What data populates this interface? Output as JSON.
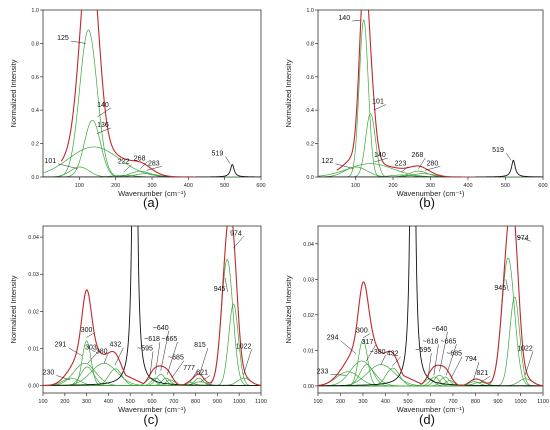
{
  "chart_data": [
    {
      "id": "a",
      "type": "line",
      "label": "(a)",
      "xlabel": "Wavenumber (cm⁻¹)",
      "ylabel": "Normalized Intensity",
      "xlim": [
        0,
        600
      ],
      "ylim": [
        0.0,
        1.0
      ],
      "xticks": [
        "100",
        "200",
        "300",
        "400",
        "500",
        "600"
      ],
      "yticks": [
        "0.0",
        "0.2",
        "0.4",
        "0.6",
        "0.8",
        "1.0"
      ],
      "annotations": [
        "101",
        "125",
        "140",
        "136",
        "222",
        "268",
        "283",
        "519"
      ],
      "fits": [
        {
          "center": 101,
          "height": 0.06,
          "width": 26
        },
        {
          "center": 125,
          "height": 0.88,
          "width": 24
        },
        {
          "center": 136,
          "height": 0.34,
          "width": 22
        },
        {
          "center": 140,
          "height": 0.18,
          "width": 70
        },
        {
          "center": 222,
          "height": 0.01,
          "width": 30
        },
        {
          "center": 268,
          "height": 0.035,
          "width": 26
        },
        {
          "center": 283,
          "height": 0.02,
          "width": 30
        }
      ],
      "silicon": {
        "center": 521,
        "height": 0.075,
        "width": 6
      }
    },
    {
      "id": "b",
      "type": "line",
      "label": "(b)",
      "xlabel": "Wavenumber (cm⁻¹)",
      "ylabel": "Normalized Intensity",
      "xlim": [
        0,
        600
      ],
      "ylim": [
        0.0,
        1.0
      ],
      "xticks": [
        "100",
        "200",
        "300",
        "400",
        "500",
        "600"
      ],
      "yticks": [
        "0.0",
        "0.2",
        "0.4",
        "0.6",
        "0.8",
        "1.0"
      ],
      "annotations": [
        "122",
        "140",
        "101",
        "140",
        "223",
        "268",
        "280",
        "519"
      ],
      "fits": [
        {
          "center": 101,
          "height": 0.06,
          "width": 30
        },
        {
          "center": 122,
          "height": 0.94,
          "width": 12
        },
        {
          "center": 140,
          "height": 0.38,
          "width": 13
        },
        {
          "center": 140,
          "height": 0.08,
          "width": 60
        },
        {
          "center": 223,
          "height": 0.012,
          "width": 30
        },
        {
          "center": 268,
          "height": 0.035,
          "width": 24
        },
        {
          "center": 280,
          "height": 0.02,
          "width": 30
        }
      ],
      "silicon": {
        "center": 521,
        "height": 0.1,
        "width": 6
      }
    },
    {
      "id": "c",
      "type": "line",
      "label": "(c)",
      "xlabel": "Wavenumber (cm⁻¹)",
      "ylabel": "Normalized Intensity",
      "xlim": [
        100,
        1100
      ],
      "ylim": [
        -0.002,
        0.043
      ],
      "xticks": [
        "100",
        "200",
        "300",
        "400",
        "500",
        "600",
        "700",
        "800",
        "900",
        "1000",
        "1100"
      ],
      "yticks": [
        "0.00",
        "0.01",
        "0.02",
        "0.03",
        "0.04"
      ],
      "annotations": [
        "230",
        "291",
        "300",
        "303",
        "~380",
        "432",
        "~595",
        "~618",
        "~640",
        "~665",
        "~685",
        "777",
        "815",
        "821",
        "945",
        "974",
        "1022"
      ],
      "fits": [
        {
          "center": 230,
          "height": 0.002,
          "width": 40
        },
        {
          "center": 291,
          "height": 0.006,
          "width": 50
        },
        {
          "center": 300,
          "height": 0.012,
          "width": 20
        },
        {
          "center": 303,
          "height": 0.005,
          "width": 30
        },
        {
          "center": 380,
          "height": 0.006,
          "width": 60
        },
        {
          "center": 432,
          "height": 0.0045,
          "width": 30
        },
        {
          "center": 595,
          "height": 0.002,
          "width": 20
        },
        {
          "center": 618,
          "height": 0.002,
          "width": 20
        },
        {
          "center": 640,
          "height": 0.003,
          "width": 22
        },
        {
          "center": 665,
          "height": 0.002,
          "width": 20
        },
        {
          "center": 685,
          "height": 0.0015,
          "width": 20
        },
        {
          "center": 777,
          "height": 0.0008,
          "width": 20
        },
        {
          "center": 815,
          "height": 0.002,
          "width": 20
        },
        {
          "center": 821,
          "height": 0.001,
          "width": 30
        },
        {
          "center": 945,
          "height": 0.034,
          "width": 26
        },
        {
          "center": 974,
          "height": 0.022,
          "width": 22
        },
        {
          "center": 1022,
          "height": 0.002,
          "width": 30
        }
      ],
      "silicon": {
        "center": 521,
        "height": 0.3,
        "width": 6
      }
    },
    {
      "id": "d",
      "type": "line",
      "label": "(d)",
      "xlabel": "Wavenumber (cm⁻¹)",
      "ylabel": "Normalized Intensity",
      "xlim": [
        100,
        1100
      ],
      "ylim": [
        -0.002,
        0.045
      ],
      "xticks": [
        "100",
        "200",
        "300",
        "400",
        "500",
        "600",
        "700",
        "800",
        "900",
        "1000",
        "1100"
      ],
      "yticks": [
        "0.00",
        "0.01",
        "0.02",
        "0.03",
        "0.04"
      ],
      "annotations": [
        "233",
        "294",
        "300",
        "317",
        "~380",
        "432",
        "~595",
        "~618",
        "~640",
        "~665",
        "~685",
        "794",
        "821",
        "945",
        "974",
        "1022"
      ],
      "fits": [
        {
          "center": 233,
          "height": 0.004,
          "width": 50
        },
        {
          "center": 294,
          "height": 0.007,
          "width": 50
        },
        {
          "center": 300,
          "height": 0.013,
          "width": 20
        },
        {
          "center": 317,
          "height": 0.006,
          "width": 30
        },
        {
          "center": 380,
          "height": 0.006,
          "width": 60
        },
        {
          "center": 432,
          "height": 0.005,
          "width": 30
        },
        {
          "center": 595,
          "height": 0.002,
          "width": 20
        },
        {
          "center": 618,
          "height": 0.0025,
          "width": 20
        },
        {
          "center": 640,
          "height": 0.003,
          "width": 22
        },
        {
          "center": 665,
          "height": 0.0025,
          "width": 20
        },
        {
          "center": 685,
          "height": 0.0015,
          "width": 20
        },
        {
          "center": 794,
          "height": 0.0012,
          "width": 24
        },
        {
          "center": 821,
          "height": 0.001,
          "width": 30
        },
        {
          "center": 945,
          "height": 0.036,
          "width": 28
        },
        {
          "center": 974,
          "height": 0.025,
          "width": 22
        },
        {
          "center": 1022,
          "height": 0.002,
          "width": 30
        }
      ],
      "silicon": {
        "center": 521,
        "height": 0.3,
        "width": 6
      }
    }
  ],
  "colors": {
    "total": "#c0282d",
    "fit": "#3aa63a",
    "silicon": "#111111",
    "axis": "#333333"
  }
}
